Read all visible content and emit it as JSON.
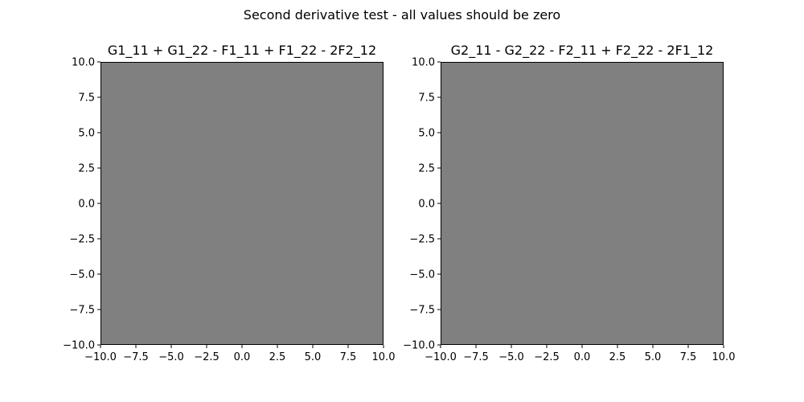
{
  "figure": {
    "suptitle": "Second derivative test - all values should be zero"
  },
  "chart_data": [
    {
      "type": "heatmap",
      "title": "G1_11 + G1_22 - F1_11 + F1_22 - 2F2_12",
      "xlabel": "",
      "ylabel": "",
      "xlim": [
        -10,
        10
      ],
      "ylim": [
        -10,
        10
      ],
      "xticks": [
        -10.0,
        -7.5,
        -5.0,
        -2.5,
        0.0,
        2.5,
        5.0,
        7.5,
        10.0
      ],
      "yticks": [
        -10.0,
        -7.5,
        -5.0,
        -2.5,
        0.0,
        2.5,
        5.0,
        7.5,
        10.0
      ],
      "xtick_labels": [
        "−10.0",
        "−7.5",
        "−5.0",
        "−2.5",
        "0.0",
        "2.5",
        "5.0",
        "7.5",
        "10.0"
      ],
      "ytick_labels": [
        "−10.0",
        "−7.5",
        "−5.0",
        "−2.5",
        "0.0",
        "2.5",
        "5.0",
        "7.5",
        "10.0"
      ],
      "value": 0,
      "fill_color": "#808080",
      "grid": false,
      "colorbar": false
    },
    {
      "type": "heatmap",
      "title": "G2_11 - G2_22 - F2_11 + F2_22 - 2F1_12",
      "xlabel": "",
      "ylabel": "",
      "xlim": [
        -10,
        10
      ],
      "ylim": [
        -10,
        10
      ],
      "xticks": [
        -10.0,
        -7.5,
        -5.0,
        -2.5,
        0.0,
        2.5,
        5.0,
        7.5,
        10.0
      ],
      "yticks": [
        -10.0,
        -7.5,
        -5.0,
        -2.5,
        0.0,
        2.5,
        5.0,
        7.5,
        10.0
      ],
      "xtick_labels": [
        "−10.0",
        "−7.5",
        "−5.0",
        "−2.5",
        "0.0",
        "2.5",
        "5.0",
        "7.5",
        "10.0"
      ],
      "ytick_labels": [
        "−10.0",
        "−7.5",
        "−5.0",
        "−2.5",
        "0.0",
        "2.5",
        "5.0",
        "7.5",
        "10.0"
      ],
      "value": 0,
      "fill_color": "#808080",
      "grid": false,
      "colorbar": false
    }
  ]
}
